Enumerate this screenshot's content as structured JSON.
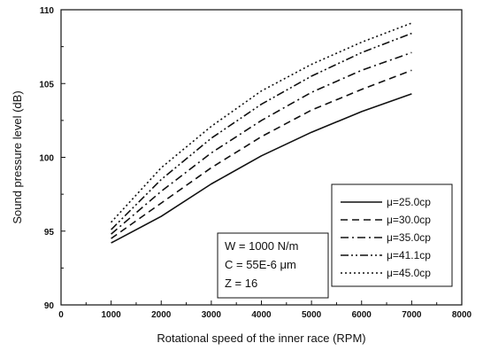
{
  "chart_data": {
    "type": "line",
    "xlabel": "Rotational speed of the inner race (RPM)",
    "ylabel": "Sound pressure level (dB)",
    "xlim": [
      0,
      8000
    ],
    "ylim": [
      90,
      110
    ],
    "x_ticks": [
      "0",
      "1000",
      "2000",
      "3000",
      "4000",
      "5000",
      "6000",
      "7000",
      "8000"
    ],
    "y_ticks": [
      "90",
      "95",
      "100",
      "105",
      "110"
    ],
    "x": [
      1000,
      2000,
      3000,
      4000,
      5000,
      6000,
      7000
    ],
    "series": [
      {
        "name": "μ=25.0cp",
        "style": "solid",
        "values": [
          94.2,
          96.0,
          98.2,
          100.1,
          101.7,
          103.1,
          104.3
        ]
      },
      {
        "name": "μ=30.0cp",
        "style": "dash",
        "values": [
          94.5,
          96.9,
          99.3,
          101.4,
          103.2,
          104.6,
          105.9
        ]
      },
      {
        "name": "μ=35.0cp",
        "style": "dashdot",
        "values": [
          94.8,
          97.7,
          100.3,
          102.5,
          104.4,
          105.9,
          107.1
        ]
      },
      {
        "name": "μ=41.1cp",
        "style": "dashdotdot",
        "values": [
          95.1,
          98.5,
          101.3,
          103.6,
          105.5,
          107.1,
          108.4
        ]
      },
      {
        "name": "μ=45.0cp",
        "style": "dot",
        "values": [
          95.6,
          99.3,
          102.1,
          104.5,
          106.3,
          107.8,
          109.1
        ]
      }
    ],
    "legend_position": "bottom-right",
    "annotation_lines": [
      "W = 1000 N/m",
      "C = 55E-6 μm",
      "Z = 16"
    ],
    "grid": false
  }
}
